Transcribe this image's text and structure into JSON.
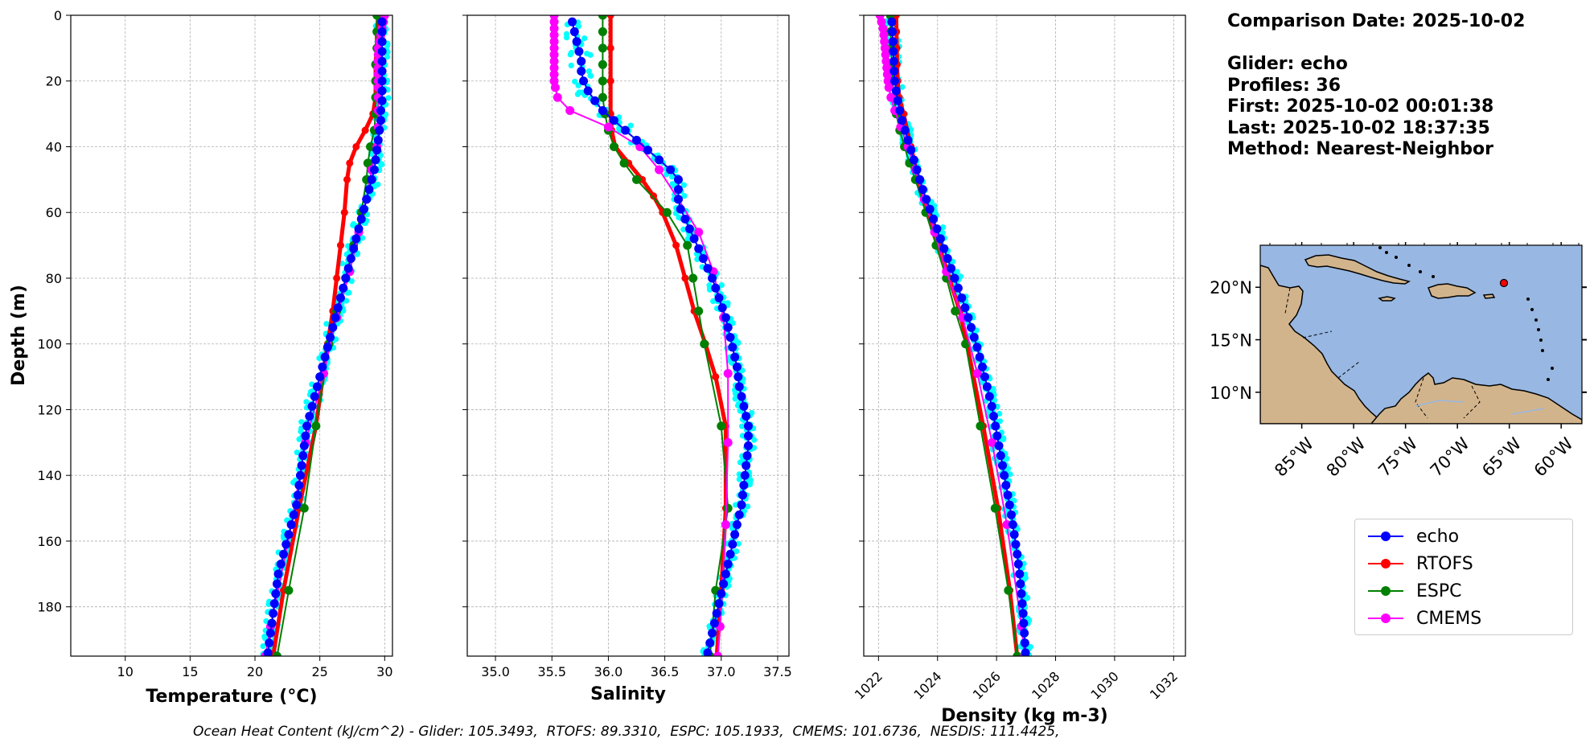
{
  "info": {
    "comparison_date": "Comparison Date: 2025-10-02",
    "glider": "Glider: echo",
    "profiles": "Profiles: 36",
    "first": "First: 2025-10-02 00:01:38",
    "last": "Last: 2025-10-02 18:37:35",
    "method": "Method: Nearest-Neighbor"
  },
  "footer": {
    "ohc_text": "Ocean Heat Content (kJ/cm^2) - Glider: 105.3493,  RTOFS: 89.3310,  ESPC: 105.1933,  CMEMS: 101.6736,  NESDIS: 111.4425,"
  },
  "legend": [
    {
      "name": "echo",
      "color": "#0000ff"
    },
    {
      "name": "RTOFS",
      "color": "#ff0000"
    },
    {
      "name": "ESPC",
      "color": "#008000"
    },
    {
      "name": "CMEMS",
      "color": "#ff00ff"
    }
  ],
  "colors": {
    "glider_raw": "#00ffff",
    "echo": "#0000ff",
    "RTOFS": "#ff0000",
    "ESPC": "#008000",
    "CMEMS": "#ff00ff",
    "ocean": "#98b7e2",
    "land": "#d2b48c",
    "grid": "#b0b0b0",
    "position_marker": "#ff0000"
  },
  "chart_data": [
    {
      "type": "line",
      "xlabel": "Temperature (°C)",
      "ylabel": "Depth (m)",
      "xlim": [
        5.8,
        30.6
      ],
      "ylim": [
        195,
        0
      ],
      "xticks": [
        10,
        15,
        20,
        25,
        30
      ],
      "yticks": [
        0,
        20,
        40,
        60,
        80,
        100,
        120,
        140,
        160,
        180
      ],
      "grid": true,
      "series": [
        {
          "name": "echo",
          "depth": [
            2,
            5,
            8,
            11,
            14,
            17,
            20,
            23,
            26,
            29,
            32,
            35,
            38,
            41,
            44,
            47,
            50,
            53,
            56,
            59,
            62,
            65,
            68,
            71,
            74,
            77,
            80,
            83,
            86,
            89,
            92,
            95,
            98,
            101,
            104,
            107,
            110,
            113,
            116,
            119,
            122,
            125,
            128,
            131,
            134,
            137,
            140,
            143,
            146,
            149,
            152,
            155,
            158,
            161,
            164,
            167,
            170,
            173,
            176,
            179,
            182,
            185,
            188,
            191,
            194
          ],
          "values": [
            29.8,
            29.8,
            29.8,
            29.8,
            29.8,
            29.8,
            29.8,
            29.8,
            29.8,
            29.7,
            29.7,
            29.6,
            29.5,
            29.4,
            29.3,
            29.2,
            29.0,
            28.8,
            28.6,
            28.4,
            28.2,
            28.0,
            27.8,
            27.6,
            27.4,
            27.2,
            27.0,
            26.8,
            26.6,
            26.4,
            26.2,
            26.0,
            25.8,
            25.6,
            25.4,
            25.2,
            25.0,
            24.8,
            24.6,
            24.4,
            24.2,
            24.0,
            23.9,
            23.8,
            23.7,
            23.6,
            23.5,
            23.4,
            23.3,
            23.2,
            23.0,
            22.8,
            22.6,
            22.4,
            22.2,
            22.0,
            21.8,
            21.7,
            21.6,
            21.5,
            21.4,
            21.3,
            21.2,
            21.1,
            21.0
          ]
        },
        {
          "name": "RTOFS",
          "depth": [
            0,
            5,
            10,
            15,
            20,
            25,
            30,
            35,
            40,
            45,
            50,
            60,
            70,
            80,
            90,
            100,
            125,
            150,
            175,
            195
          ],
          "values": [
            29.5,
            29.4,
            29.4,
            29.3,
            29.3,
            29.3,
            29.1,
            28.5,
            27.8,
            27.3,
            27.1,
            26.9,
            26.6,
            26.3,
            26.0,
            25.6,
            24.7,
            23.4,
            22.2,
            21.4
          ]
        },
        {
          "name": "ESPC",
          "depth": [
            0,
            5,
            10,
            15,
            20,
            25,
            30,
            35,
            40,
            45,
            50,
            60,
            70,
            80,
            90,
            100,
            125,
            150,
            175,
            195
          ],
          "values": [
            29.4,
            29.4,
            29.4,
            29.3,
            29.3,
            29.3,
            29.3,
            29.2,
            28.9,
            28.7,
            28.6,
            28.2,
            27.6,
            27.0,
            26.3,
            25.7,
            24.7,
            23.8,
            22.6,
            21.7
          ]
        },
        {
          "name": "CMEMS",
          "depth": [
            0,
            2,
            4,
            6,
            8,
            10,
            12,
            14,
            16,
            18,
            20,
            22,
            25,
            29,
            34,
            40,
            47,
            56,
            66,
            78,
            92,
            109,
            130,
            155,
            186,
            195
          ],
          "values": [
            30.0,
            29.9,
            29.8,
            29.7,
            29.6,
            29.5,
            29.5,
            29.5,
            29.5,
            29.5,
            29.5,
            29.5,
            29.5,
            29.5,
            29.5,
            29.4,
            29.0,
            28.6,
            28.0,
            27.3,
            26.3,
            25.3,
            23.9,
            22.8,
            21.2,
            20.8
          ]
        }
      ]
    },
    {
      "type": "line",
      "xlabel": "Salinity",
      "xlim": [
        34.75,
        37.6
      ],
      "ylim": [
        195,
        0
      ],
      "xticks": [
        35.0,
        35.5,
        36.0,
        36.5,
        37.0,
        37.5
      ],
      "grid": true,
      "series": [
        {
          "name": "echo",
          "depth": [
            2,
            5,
            8,
            11,
            14,
            17,
            20,
            23,
            26,
            29,
            32,
            35,
            38,
            41,
            44,
            47,
            50,
            53,
            56,
            59,
            62,
            65,
            68,
            71,
            74,
            77,
            80,
            83,
            86,
            89,
            92,
            95,
            98,
            101,
            104,
            107,
            110,
            113,
            116,
            119,
            122,
            125,
            128,
            131,
            134,
            137,
            140,
            143,
            146,
            149,
            152,
            155,
            158,
            161,
            164,
            167,
            170,
            173,
            176,
            179,
            182,
            185,
            188,
            191,
            194
          ],
          "values": [
            35.68,
            35.7,
            35.72,
            35.74,
            35.76,
            35.76,
            35.78,
            35.82,
            35.88,
            35.95,
            36.05,
            36.15,
            36.25,
            36.35,
            36.45,
            36.55,
            36.62,
            36.62,
            36.62,
            36.64,
            36.68,
            36.72,
            36.76,
            36.8,
            36.84,
            36.88,
            36.92,
            36.95,
            36.98,
            37.01,
            37.04,
            37.06,
            37.08,
            37.1,
            37.12,
            37.14,
            37.15,
            37.16,
            37.18,
            37.2,
            37.22,
            37.24,
            37.24,
            37.24,
            37.23,
            37.22,
            37.21,
            37.2,
            37.19,
            37.18,
            37.16,
            37.14,
            37.12,
            37.1,
            37.08,
            37.06,
            37.04,
            37.02,
            37.0,
            36.98,
            36.96,
            36.94,
            36.92,
            36.9,
            36.88
          ]
        },
        {
          "name": "RTOFS",
          "depth": [
            0,
            10,
            20,
            30,
            35,
            40,
            45,
            50,
            55,
            60,
            70,
            80,
            90,
            100,
            110,
            125,
            150,
            175,
            195
          ],
          "values": [
            36.02,
            36.02,
            36.02,
            36.02,
            36.03,
            36.06,
            36.18,
            36.3,
            36.4,
            36.48,
            36.6,
            36.68,
            36.76,
            36.86,
            36.95,
            37.04,
            37.04,
            37.0,
            36.96
          ]
        },
        {
          "name": "ESPC",
          "depth": [
            0,
            5,
            10,
            15,
            20,
            25,
            30,
            35,
            40,
            45,
            50,
            60,
            70,
            80,
            90,
            100,
            125,
            150,
            175,
            195
          ],
          "values": [
            35.95,
            35.95,
            35.95,
            35.95,
            35.95,
            35.95,
            35.97,
            36.0,
            36.05,
            36.14,
            36.25,
            36.52,
            36.7,
            36.75,
            36.8,
            36.85,
            37.0,
            37.06,
            36.95,
            36.9
          ]
        },
        {
          "name": "CMEMS",
          "depth": [
            0,
            2,
            4,
            6,
            8,
            10,
            12,
            14,
            16,
            18,
            20,
            22,
            25,
            29,
            34,
            40,
            47,
            56,
            66,
            78,
            92,
            109,
            130,
            155,
            186,
            195
          ],
          "values": [
            35.52,
            35.52,
            35.52,
            35.52,
            35.52,
            35.52,
            35.52,
            35.52,
            35.52,
            35.52,
            35.52,
            35.53,
            35.55,
            35.66,
            36.0,
            36.28,
            36.45,
            36.62,
            36.8,
            36.93,
            37.02,
            37.06,
            37.06,
            37.04,
            36.99,
            36.97
          ]
        }
      ]
    },
    {
      "type": "line",
      "xlabel": "Density (kg m-3)",
      "xlim": [
        1021.5,
        1032.4
      ],
      "ylim": [
        195,
        0
      ],
      "xticks": [
        1022,
        1024,
        1026,
        1028,
        1030,
        1032
      ],
      "grid": true,
      "series": [
        {
          "name": "echo",
          "depth": [
            2,
            5,
            8,
            11,
            14,
            17,
            20,
            23,
            26,
            29,
            32,
            35,
            38,
            41,
            44,
            47,
            50,
            53,
            56,
            59,
            62,
            65,
            68,
            71,
            74,
            77,
            80,
            83,
            86,
            89,
            92,
            95,
            98,
            101,
            104,
            107,
            110,
            113,
            116,
            119,
            122,
            125,
            128,
            131,
            134,
            137,
            140,
            143,
            146,
            149,
            152,
            155,
            158,
            161,
            164,
            167,
            170,
            173,
            176,
            179,
            182,
            185,
            188,
            191,
            194
          ],
          "values": [
            1022.45,
            1022.47,
            1022.49,
            1022.5,
            1022.52,
            1022.53,
            1022.55,
            1022.6,
            1022.65,
            1022.72,
            1022.8,
            1022.9,
            1023.0,
            1023.1,
            1023.2,
            1023.3,
            1023.4,
            1023.5,
            1023.62,
            1023.74,
            1023.86,
            1023.98,
            1024.1,
            1024.22,
            1024.34,
            1024.46,
            1024.58,
            1024.7,
            1024.82,
            1024.93,
            1025.04,
            1025.14,
            1025.24,
            1025.34,
            1025.43,
            1025.52,
            1025.6,
            1025.68,
            1025.76,
            1025.84,
            1025.9,
            1025.96,
            1026.02,
            1026.08,
            1026.14,
            1026.2,
            1026.26,
            1026.32,
            1026.38,
            1026.44,
            1026.5,
            1026.55,
            1026.6,
            1026.65,
            1026.7,
            1026.74,
            1026.78,
            1026.81,
            1026.84,
            1026.87,
            1026.9,
            1026.92,
            1026.94,
            1026.96,
            1026.98
          ]
        },
        {
          "name": "RTOFS",
          "depth": [
            0,
            5,
            10,
            15,
            20,
            25,
            30,
            40,
            50,
            60,
            70,
            80,
            90,
            100,
            125,
            150,
            175,
            195
          ],
          "values": [
            1022.6,
            1022.61,
            1022.62,
            1022.63,
            1022.65,
            1022.7,
            1022.85,
            1023.1,
            1023.35,
            1023.7,
            1024.05,
            1024.4,
            1024.75,
            1025.0,
            1025.55,
            1026.05,
            1026.45,
            1026.7
          ]
        },
        {
          "name": "ESPC",
          "depth": [
            0,
            5,
            10,
            15,
            20,
            25,
            30,
            35,
            40,
            45,
            50,
            60,
            70,
            80,
            90,
            100,
            125,
            150,
            175,
            195
          ],
          "values": [
            1022.4,
            1022.41,
            1022.43,
            1022.45,
            1022.48,
            1022.52,
            1022.6,
            1022.72,
            1022.88,
            1023.05,
            1023.25,
            1023.6,
            1023.95,
            1024.3,
            1024.6,
            1024.95,
            1025.45,
            1025.95,
            1026.4,
            1026.7
          ]
        },
        {
          "name": "CMEMS",
          "depth": [
            0,
            2,
            4,
            6,
            8,
            10,
            12,
            14,
            16,
            18,
            20,
            22,
            25,
            29,
            34,
            40,
            47,
            56,
            66,
            78,
            92,
            109,
            130,
            155,
            186,
            195
          ],
          "values": [
            1022.05,
            1022.1,
            1022.15,
            1022.18,
            1022.2,
            1022.22,
            1022.24,
            1022.26,
            1022.28,
            1022.3,
            1022.32,
            1022.35,
            1022.42,
            1022.55,
            1022.75,
            1023.0,
            1023.25,
            1023.55,
            1023.9,
            1024.3,
            1024.85,
            1025.35,
            1025.85,
            1026.35,
            1026.85,
            1026.95
          ]
        }
      ]
    },
    {
      "type": "map",
      "lon_range": [
        -89,
        -58
      ],
      "lat_range": [
        7,
        24
      ],
      "xticks": [
        "85°W",
        "80°W",
        "75°W",
        "70°W",
        "65°W",
        "60°W"
      ],
      "yticks": [
        "10°N",
        "15°N",
        "20°N"
      ],
      "glider_position": {
        "lon": -65.5,
        "lat": 20.4
      }
    }
  ]
}
